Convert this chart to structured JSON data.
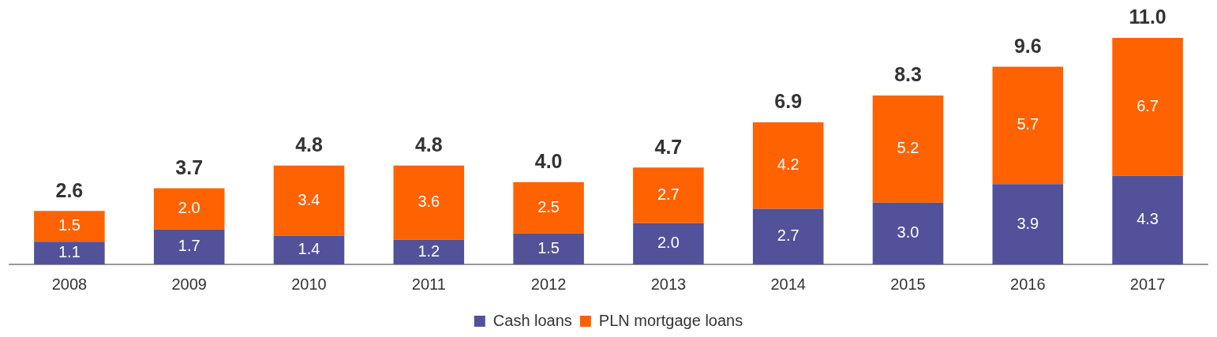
{
  "chart_data": {
    "type": "bar",
    "stacked": true,
    "legend": "bottom",
    "tick_labels": "x",
    "categories": [
      "2008",
      "2009",
      "2010",
      "2011",
      "2012",
      "2013",
      "2014",
      "2015",
      "2016",
      "2017"
    ],
    "series": [
      {
        "name": "Cash loans",
        "color": "#525199",
        "values": [
          1.1,
          1.7,
          1.4,
          1.2,
          1.5,
          2.0,
          2.7,
          3.0,
          3.9,
          4.3
        ],
        "value_labels": [
          "1.1",
          "1.7",
          "1.4",
          "1.2",
          "1.5",
          "2.0",
          "2.7",
          "3.0",
          "3.9",
          "4.3"
        ]
      },
      {
        "name": "PLN mortgage loans",
        "color": "#ff6200",
        "values": [
          1.5,
          2.0,
          3.4,
          3.6,
          2.5,
          2.7,
          4.2,
          5.2,
          5.7,
          6.7
        ],
        "value_labels": [
          "1.5",
          "2.0",
          "3.4",
          "3.6",
          "2.5",
          "2.7",
          "4.2",
          "5.2",
          "5.7",
          "6.7"
        ]
      }
    ],
    "totals": [
      "2.6",
      "3.7",
      "4.8",
      "4.8",
      "4.0",
      "4.7",
      "6.9",
      "8.3",
      "9.6",
      "11.0"
    ]
  }
}
